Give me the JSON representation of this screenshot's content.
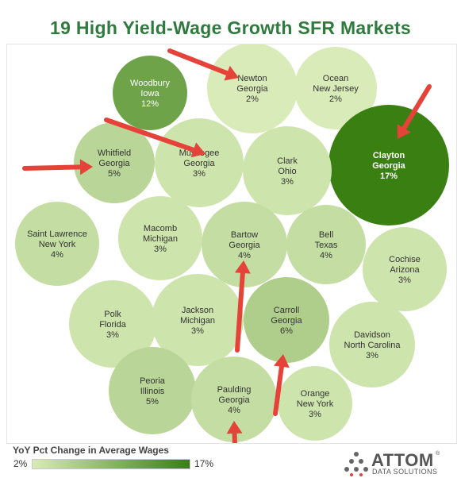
{
  "title": "19 High Yield-Wage Growth SFR Markets",
  "chart_data": {
    "type": "bubble",
    "title": "19 High Yield-Wage Growth SFR Markets",
    "measure": "YoY Pct Change in Average Wages",
    "color_scale": {
      "min_label": "2%",
      "max_label": "17%",
      "min": 2,
      "max": 17,
      "min_color": "#d9ebb8",
      "max_color": "#3a7f12"
    },
    "series": [
      {
        "name": "Newton",
        "region": "Georgia",
        "value": 2,
        "label": "2%",
        "arrow": true
      },
      {
        "name": "Ocean",
        "region": "New Jersey",
        "value": 2,
        "label": "2%",
        "arrow": false
      },
      {
        "name": "Woodbury",
        "region": "Iowa",
        "value": 12,
        "label": "12%",
        "arrow": false
      },
      {
        "name": "Clayton",
        "region": "Georgia",
        "value": 17,
        "label": "17%",
        "arrow": true
      },
      {
        "name": "Whitfield",
        "region": "Georgia",
        "value": 5,
        "label": "5%",
        "arrow": true
      },
      {
        "name": "Muscogee",
        "region": "Georgia",
        "value": 3,
        "label": "3%",
        "arrow": true
      },
      {
        "name": "Clark",
        "region": "Ohio",
        "value": 3,
        "label": "3%",
        "arrow": false
      },
      {
        "name": "Saint Lawrence",
        "region": "New York",
        "value": 4,
        "label": "4%",
        "arrow": false
      },
      {
        "name": "Macomb",
        "region": "Michigan",
        "value": 3,
        "label": "3%",
        "arrow": false
      },
      {
        "name": "Bartow",
        "region": "Georgia",
        "value": 4,
        "label": "4%",
        "arrow": true
      },
      {
        "name": "Bell",
        "region": "Texas",
        "value": 4,
        "label": "4%",
        "arrow": false
      },
      {
        "name": "Cochise",
        "region": "Arizona",
        "value": 3,
        "label": "3%",
        "arrow": false
      },
      {
        "name": "Polk",
        "region": "Florida",
        "value": 3,
        "label": "3%",
        "arrow": false
      },
      {
        "name": "Jackson",
        "region": "Michigan",
        "value": 3,
        "label": "3%",
        "arrow": false
      },
      {
        "name": "Carroll",
        "region": "Georgia",
        "value": 6,
        "label": "6%",
        "arrow": true
      },
      {
        "name": "Davidson",
        "region": "North Carolina",
        "value": 3,
        "label": "3%",
        "arrow": false
      },
      {
        "name": "Peoria",
        "region": "Illinois",
        "value": 5,
        "label": "5%",
        "arrow": false
      },
      {
        "name": "Paulding",
        "region": "Georgia",
        "value": 4,
        "label": "4%",
        "arrow": true
      },
      {
        "name": "Orange",
        "region": "New York",
        "value": 3,
        "label": "3%",
        "arrow": false
      }
    ]
  },
  "legend": {
    "title": "YoY Pct Change in Average Wages",
    "min_label": "2%",
    "max_label": "17%"
  },
  "logo": {
    "name": "ATTOM",
    "reg_mark": "®",
    "subtitle": "DATA SOLUTIONS"
  },
  "colors": {
    "title": "#2f7a3e",
    "arrow": "#e5423a",
    "logo_text": "#555555"
  }
}
